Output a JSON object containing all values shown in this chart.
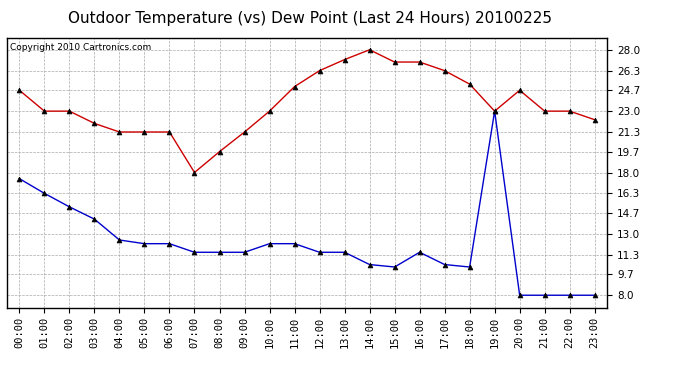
{
  "title": "Outdoor Temperature (vs) Dew Point (Last 24 Hours) 20100225",
  "copyright": "Copyright 2010 Cartronics.com",
  "hours": [
    "00:00",
    "01:00",
    "02:00",
    "03:00",
    "04:00",
    "05:00",
    "06:00",
    "07:00",
    "08:00",
    "09:00",
    "10:00",
    "11:00",
    "12:00",
    "13:00",
    "14:00",
    "15:00",
    "16:00",
    "17:00",
    "18:00",
    "19:00",
    "20:00",
    "21:00",
    "22:00",
    "23:00"
  ],
  "temp": [
    24.7,
    23.0,
    23.0,
    22.0,
    21.3,
    21.3,
    21.3,
    18.0,
    19.7,
    21.3,
    23.0,
    25.0,
    26.3,
    27.2,
    28.0,
    27.0,
    27.0,
    26.3,
    25.2,
    23.0,
    24.7,
    23.0,
    23.0,
    22.3
  ],
  "dew": [
    17.5,
    16.3,
    15.2,
    14.2,
    12.5,
    12.2,
    12.2,
    11.5,
    11.5,
    11.5,
    12.2,
    12.2,
    11.5,
    11.5,
    10.5,
    10.3,
    11.5,
    10.5,
    10.3,
    23.0,
    8.0,
    8.0,
    8.0,
    8.0
  ],
  "temp_color": "#cc0000",
  "dew_color": "#0000cc",
  "bg_color": "#ffffff",
  "plot_bg_color": "#ffffff",
  "grid_color": "#aaaaaa",
  "yticks": [
    8.0,
    9.7,
    11.3,
    13.0,
    14.7,
    16.3,
    18.0,
    19.7,
    21.3,
    23.0,
    24.7,
    26.3,
    28.0
  ],
  "ylim": [
    7.0,
    29.0
  ],
  "title_fontsize": 11,
  "copyright_fontsize": 6.5,
  "tick_fontsize": 7.5
}
